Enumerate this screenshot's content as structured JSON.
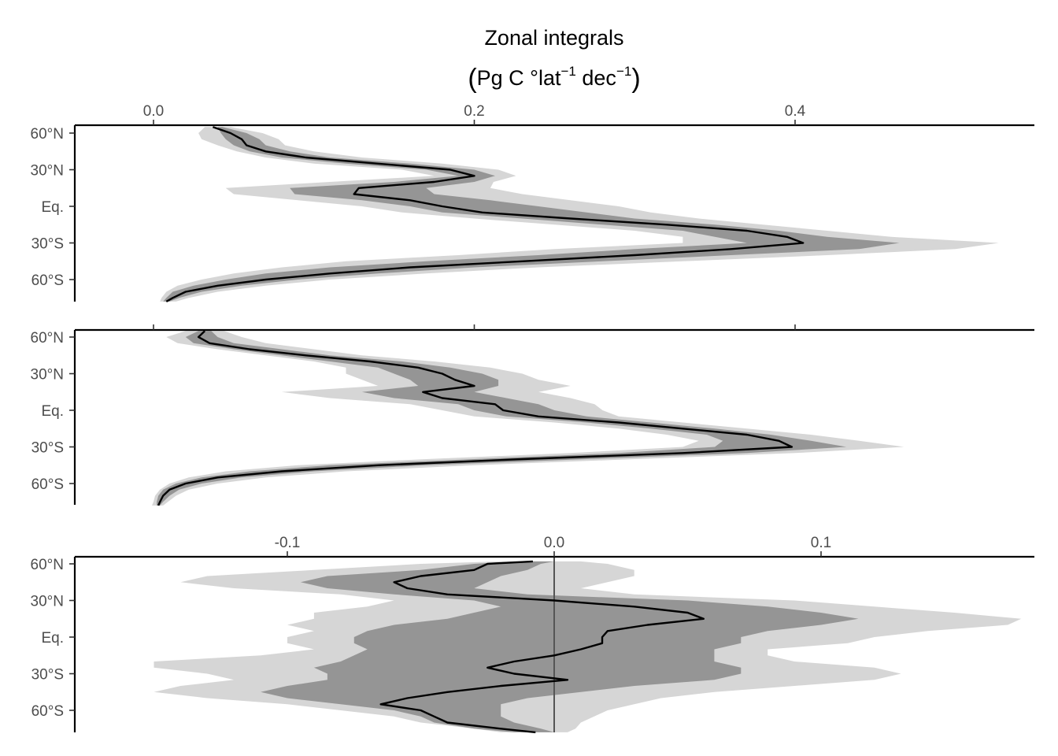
{
  "figure": {
    "title_line1": "Zonal integrals",
    "title_unit_main": "Pg C °lat",
    "title_unit_sup1": "−1",
    "title_unit_mid": " dec",
    "title_unit_sup2": "−1"
  },
  "chart_data": [
    {
      "type": "line",
      "panel": "top",
      "orientation": "horizontal-values-vertical-latitude",
      "xlim": [
        -0.05,
        0.545
      ],
      "ylim": [
        -82,
        70
      ],
      "x_ticks": [
        0.0,
        0.2,
        0.4
      ],
      "x_tick_labels": [
        "0.0",
        "0.2",
        "0.4"
      ],
      "x_axis_position": "top",
      "y_ticks": [
        60,
        30,
        0,
        -30,
        -60
      ],
      "y_tick_labels": [
        "60°N",
        "30°N",
        "Eq.",
        "30°S",
        "60°S"
      ],
      "lat": [
        65,
        60,
        55,
        50,
        45,
        40,
        35,
        30,
        25,
        20,
        15,
        10,
        5,
        0,
        -5,
        -10,
        -15,
        -20,
        -25,
        -30,
        -35,
        -40,
        -45,
        -50,
        -55,
        -60,
        -65,
        -70,
        -75,
        -78
      ],
      "median": [
        0.037,
        0.048,
        0.055,
        0.058,
        0.07,
        0.095,
        0.14,
        0.185,
        0.2,
        0.175,
        0.128,
        0.125,
        0.16,
        0.18,
        0.205,
        0.26,
        0.32,
        0.37,
        0.395,
        0.405,
        0.36,
        0.3,
        0.23,
        0.16,
        0.11,
        0.07,
        0.04,
        0.02,
        0.012,
        0.008
      ],
      "inner_lower": [
        0.04,
        0.042,
        0.045,
        0.05,
        0.06,
        0.08,
        0.12,
        0.17,
        0.19,
        0.15,
        0.085,
        0.088,
        0.13,
        0.16,
        0.18,
        0.23,
        0.28,
        0.33,
        0.35,
        0.37,
        0.3,
        0.24,
        0.17,
        0.11,
        0.07,
        0.045,
        0.025,
        0.012,
        0.008,
        0.006
      ],
      "inner_upper": [
        0.043,
        0.058,
        0.066,
        0.07,
        0.085,
        0.11,
        0.16,
        0.2,
        0.213,
        0.2,
        0.17,
        0.175,
        0.21,
        0.24,
        0.27,
        0.3,
        0.35,
        0.39,
        0.42,
        0.465,
        0.44,
        0.36,
        0.28,
        0.2,
        0.14,
        0.09,
        0.055,
        0.03,
        0.016,
        0.01
      ],
      "outer_lower": [
        0.032,
        0.028,
        0.03,
        0.04,
        0.052,
        0.07,
        0.1,
        0.155,
        0.175,
        0.11,
        0.045,
        0.05,
        0.09,
        0.13,
        0.155,
        0.2,
        0.25,
        0.3,
        0.33,
        0.33,
        0.25,
        0.19,
        0.12,
        0.08,
        0.05,
        0.03,
        0.015,
        0.008,
        0.005,
        0.004
      ],
      "outer_upper": [
        0.048,
        0.068,
        0.078,
        0.082,
        0.1,
        0.13,
        0.18,
        0.215,
        0.226,
        0.212,
        0.21,
        0.23,
        0.26,
        0.29,
        0.31,
        0.34,
        0.38,
        0.42,
        0.46,
        0.527,
        0.5,
        0.42,
        0.33,
        0.24,
        0.17,
        0.11,
        0.07,
        0.04,
        0.022,
        0.014
      ]
    },
    {
      "type": "line",
      "panel": "middle",
      "orientation": "horizontal-values-vertical-latitude",
      "xlim": [
        -0.05,
        0.545
      ],
      "ylim": [
        -82,
        70
      ],
      "x_ticks": [
        0.0,
        0.2,
        0.4
      ],
      "x_axis_position": "top",
      "y_ticks": [
        60,
        30,
        0,
        -30,
        -60
      ],
      "y_tick_labels": [
        "60°N",
        "30°N",
        "Eq.",
        "30°S",
        "60°S"
      ],
      "lat": [
        65,
        60,
        55,
        50,
        45,
        40,
        35,
        30,
        25,
        20,
        15,
        10,
        5,
        0,
        -5,
        -10,
        -15,
        -20,
        -25,
        -30,
        -35,
        -40,
        -45,
        -50,
        -55,
        -60,
        -65,
        -70,
        -75,
        -78
      ],
      "median": [
        0.032,
        0.028,
        0.035,
        0.06,
        0.095,
        0.135,
        0.165,
        0.18,
        0.188,
        0.2,
        0.168,
        0.18,
        0.213,
        0.218,
        0.24,
        0.29,
        0.33,
        0.37,
        0.39,
        0.398,
        0.33,
        0.23,
        0.14,
        0.08,
        0.04,
        0.02,
        0.01,
        0.006,
        0.004,
        0.003
      ],
      "inner_lower": [
        0.028,
        0.02,
        0.025,
        0.05,
        0.08,
        0.11,
        0.14,
        0.15,
        0.16,
        0.165,
        0.13,
        0.15,
        0.19,
        0.2,
        0.22,
        0.27,
        0.31,
        0.345,
        0.355,
        0.35,
        0.29,
        0.2,
        0.11,
        0.06,
        0.03,
        0.014,
        0.006,
        0.003,
        0.002,
        0.002
      ],
      "inner_upper": [
        0.036,
        0.04,
        0.05,
        0.08,
        0.11,
        0.155,
        0.185,
        0.205,
        0.215,
        0.215,
        0.2,
        0.22,
        0.24,
        0.25,
        0.27,
        0.31,
        0.35,
        0.385,
        0.41,
        0.432,
        0.37,
        0.27,
        0.17,
        0.1,
        0.055,
        0.03,
        0.016,
        0.01,
        0.006,
        0.004
      ],
      "outer_lower": [
        0.02,
        0.008,
        0.015,
        0.04,
        0.07,
        0.1,
        0.12,
        0.12,
        0.13,
        0.14,
        0.08,
        0.11,
        0.16,
        0.18,
        0.2,
        0.25,
        0.29,
        0.32,
        0.34,
        0.33,
        0.26,
        0.17,
        0.09,
        0.045,
        0.022,
        0.01,
        0.004,
        0.001,
        0.0,
        -0.001
      ],
      "outer_upper": [
        0.044,
        0.055,
        0.07,
        0.1,
        0.13,
        0.175,
        0.21,
        0.23,
        0.24,
        0.26,
        0.24,
        0.26,
        0.275,
        0.28,
        0.29,
        0.33,
        0.37,
        0.41,
        0.44,
        0.468,
        0.4,
        0.3,
        0.2,
        0.12,
        0.07,
        0.04,
        0.022,
        0.014,
        0.009,
        0.006
      ]
    },
    {
      "type": "line",
      "panel": "bottom",
      "orientation": "horizontal-values-vertical-latitude",
      "xlim": [
        -0.18,
        0.18
      ],
      "ylim": [
        -82,
        70
      ],
      "x_ticks": [
        -0.1,
        0.0,
        0.1
      ],
      "x_tick_labels": [
        "-0.1",
        "0.0",
        "0.1"
      ],
      "x_axis_position": "top",
      "y_ticks": [
        60,
        30,
        0,
        -30,
        -60
      ],
      "y_tick_labels": [
        "60°N",
        "30°N",
        "Eq.",
        "30°S",
        "60°S"
      ],
      "reference_line_x": 0.0,
      "lat": [
        62,
        60,
        55,
        50,
        45,
        40,
        35,
        30,
        25,
        20,
        15,
        10,
        5,
        0,
        -5,
        -10,
        -15,
        -20,
        -25,
        -30,
        -35,
        -40,
        -45,
        -50,
        -55,
        -60,
        -65,
        -70,
        -75,
        -78
      ],
      "median": [
        -0.008,
        -0.025,
        -0.03,
        -0.05,
        -0.06,
        -0.055,
        -0.04,
        0.0,
        0.03,
        0.05,
        0.056,
        0.035,
        0.02,
        0.018,
        0.018,
        0.01,
        0.0,
        -0.015,
        -0.025,
        -0.015,
        0.005,
        -0.02,
        -0.04,
        -0.055,
        -0.065,
        -0.05,
        -0.045,
        -0.04,
        -0.02,
        -0.007
      ],
      "inner_lower": [
        -0.015,
        -0.03,
        -0.05,
        -0.085,
        -0.095,
        -0.085,
        -0.06,
        -0.03,
        -0.02,
        -0.03,
        -0.04,
        -0.06,
        -0.07,
        -0.075,
        -0.075,
        -0.07,
        -0.075,
        -0.08,
        -0.09,
        -0.085,
        -0.085,
        -0.1,
        -0.11,
        -0.1,
        -0.08,
        -0.06,
        -0.05,
        -0.045,
        -0.03,
        -0.015
      ],
      "inner_upper": [
        0.0,
        -0.005,
        -0.01,
        -0.02,
        -0.025,
        -0.03,
        -0.01,
        0.05,
        0.08,
        0.1,
        0.114,
        0.1,
        0.08,
        0.07,
        0.07,
        0.06,
        0.06,
        0.06,
        0.07,
        0.07,
        0.06,
        0.03,
        0.01,
        -0.01,
        -0.02,
        -0.02,
        -0.02,
        -0.015,
        -0.005,
        0.0
      ],
      "outer_lower": [
        -0.02,
        -0.05,
        -0.09,
        -0.13,
        -0.14,
        -0.12,
        -0.08,
        -0.06,
        -0.07,
        -0.09,
        -0.09,
        -0.1,
        -0.09,
        -0.1,
        -0.1,
        -0.09,
        -0.11,
        -0.15,
        -0.15,
        -0.13,
        -0.12,
        -0.14,
        -0.15,
        -0.13,
        -0.1,
        -0.08,
        -0.06,
        -0.05,
        -0.03,
        -0.02
      ],
      "outer_upper": [
        0.01,
        0.02,
        0.03,
        0.03,
        0.02,
        0.01,
        0.03,
        0.09,
        0.12,
        0.15,
        0.175,
        0.17,
        0.14,
        0.12,
        0.11,
        0.08,
        0.08,
        0.09,
        0.12,
        0.13,
        0.12,
        0.09,
        0.06,
        0.04,
        0.03,
        0.02,
        0.015,
        0.01,
        0.008,
        0.005
      ]
    }
  ]
}
